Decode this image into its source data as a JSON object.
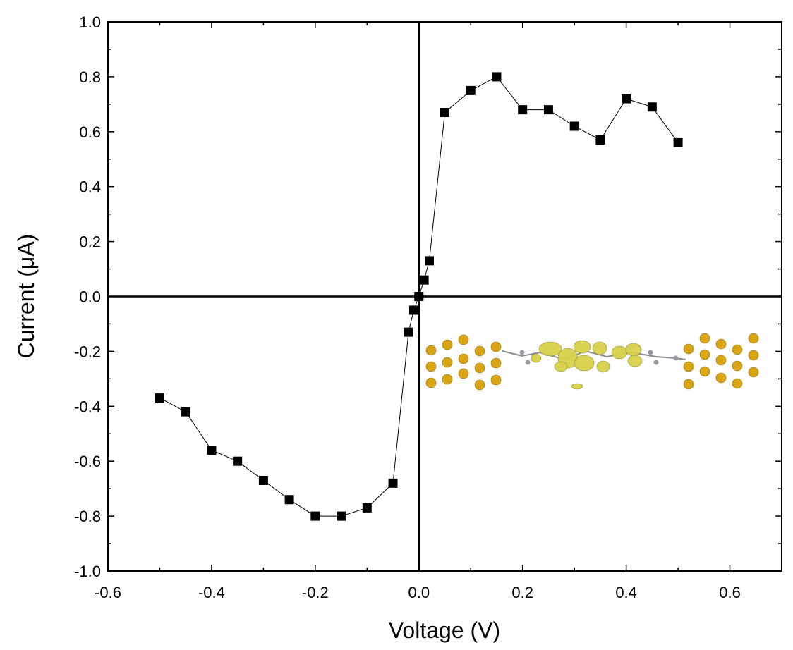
{
  "chart_data": {
    "type": "scatter",
    "title": "",
    "xlabel": "Voltage (V)",
    "ylabel": "Current (μA)",
    "xlim": [
      -0.6,
      0.7
    ],
    "ylim": [
      -1.0,
      1.0
    ],
    "x_ticks": [
      "-0.6",
      "-0.4",
      "-0.2",
      "0.0",
      "0.2",
      "0.4",
      "0.6"
    ],
    "y_ticks": [
      "1.0",
      "0.8",
      "0.6",
      "0.4",
      "0.2",
      "0.0",
      "-0.2",
      "-0.4",
      "-0.6",
      "-0.8",
      "-1.0"
    ],
    "grid": false,
    "marker": "square",
    "line_connected": true,
    "series": [
      {
        "points": [
          {
            "x": -0.5,
            "y": -0.37
          },
          {
            "x": -0.45,
            "y": -0.42
          },
          {
            "x": -0.4,
            "y": -0.56
          },
          {
            "x": -0.35,
            "y": -0.6
          },
          {
            "x": -0.3,
            "y": -0.67
          },
          {
            "x": -0.25,
            "y": -0.74
          },
          {
            "x": -0.2,
            "y": -0.8
          },
          {
            "x": -0.15,
            "y": -0.8
          },
          {
            "x": -0.1,
            "y": -0.77
          },
          {
            "x": -0.05,
            "y": -0.68
          },
          {
            "x": -0.02,
            "y": -0.13
          },
          {
            "x": -0.01,
            "y": -0.05
          },
          {
            "x": 0.0,
            "y": 0.0
          },
          {
            "x": 0.01,
            "y": 0.06
          },
          {
            "x": 0.02,
            "y": 0.13
          },
          {
            "x": 0.05,
            "y": 0.67
          },
          {
            "x": 0.1,
            "y": 0.75
          },
          {
            "x": 0.15,
            "y": 0.8
          },
          {
            "x": 0.2,
            "y": 0.68
          },
          {
            "x": 0.25,
            "y": 0.68
          },
          {
            "x": 0.3,
            "y": 0.62
          },
          {
            "x": 0.35,
            "y": 0.57
          },
          {
            "x": 0.4,
            "y": 0.72
          },
          {
            "x": 0.45,
            "y": 0.69
          },
          {
            "x": 0.5,
            "y": 0.56
          }
        ]
      }
    ],
    "inset": "molecular-junction-illustration",
    "colors": {
      "series": "#000000",
      "gold_atom": "#d9a514",
      "orbital": "#d8d04a",
      "molecule_atom": "#9a9aa4"
    }
  }
}
